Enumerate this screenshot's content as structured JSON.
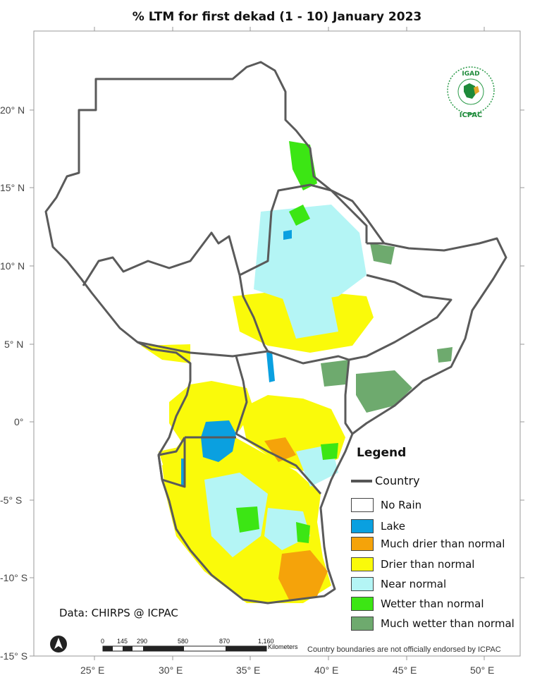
{
  "title": "% LTM  for first dekad (1 - 10) January 2023",
  "lat_ticks": [
    "20° N",
    "15° N",
    "10° N",
    "5° N",
    "0°",
    "-5° S",
    "-10° S",
    "-15° S"
  ],
  "lon_ticks": [
    "25° E",
    "30° E",
    "35° E",
    "40° E",
    "45° E",
    "50° E"
  ],
  "legend": {
    "title": "Legend",
    "country_label": "Country",
    "items": [
      {
        "label": "No Rain",
        "color": "#ffffff"
      },
      {
        "label": "Lake",
        "color": "#0aa0e0"
      },
      {
        "label": "Much drier than normal",
        "color": "#f5a30a"
      },
      {
        "label": "Drier than normal",
        "color": "#fafa0a"
      },
      {
        "label": "Near normal",
        "color": "#b4f5f5"
      },
      {
        "label": "Wetter than normal",
        "color": "#3ce614"
      },
      {
        "label": "Much wetter than normal",
        "color": "#6eaa6e"
      }
    ]
  },
  "source": "Data: CHIRPS @ ICPAC",
  "scale_bar": {
    "labels": [
      "0",
      "145",
      "290",
      "580",
      "870",
      "1,160"
    ],
    "unit": "Kilometers"
  },
  "disclaimer": "Country boundaries are not officially endorsed by ICPAC",
  "logo": {
    "top_text": "IGAD",
    "bottom_text": "ICPAC"
  },
  "colors": {
    "border": "#5a5a5a",
    "frame": "#999999"
  }
}
